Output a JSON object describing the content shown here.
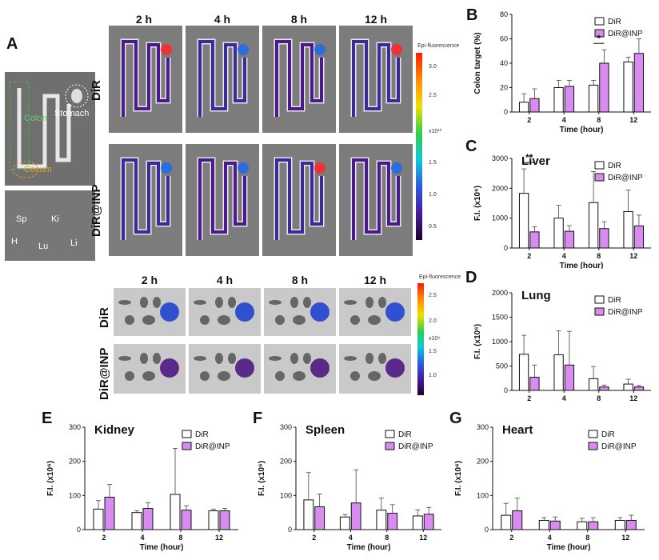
{
  "panels": {
    "A": "A",
    "B": "B",
    "C": "C",
    "D": "D",
    "E": "E",
    "F": "F",
    "G": "G"
  },
  "colon_imaging": {
    "times": [
      "2 h",
      "4 h",
      "8 h",
      "12 h"
    ],
    "rows": [
      "DiR",
      "DiR@INP"
    ],
    "colorbar_title": "Epi-fluorescence",
    "colorbar_ticks": [
      "3.0",
      "2.5",
      "2.0",
      "1.5",
      "1.0",
      "0.5"
    ],
    "colorbar_unit": "x10¹⁰"
  },
  "organ_imaging": {
    "times": [
      "2 h",
      "4 h",
      "8 h",
      "12 h"
    ],
    "rows": [
      "DiR",
      "DiR@INP"
    ],
    "colorbar_title": "Epi-fluorescence",
    "colorbar_ticks": [
      "2.5",
      "2.0",
      "1.5",
      "1.0"
    ],
    "colorbar_unit": "x10⁹"
  },
  "anatomy": {
    "colon": "Colon",
    "stomach": "Stomach",
    "cecum": "Cecum",
    "organs": [
      "Sp",
      "Ki",
      "H",
      "Lu",
      "Li"
    ]
  },
  "chart_data": [
    {
      "id": "B",
      "type": "bar",
      "categories": [
        "2",
        "4",
        "8",
        "12"
      ],
      "xlabel": "Time (hour)",
      "ylabel": "Colon target (%)",
      "ylim": [
        0,
        80
      ],
      "yticks": [
        0,
        20,
        40,
        60,
        80
      ],
      "legend": [
        "DiR",
        "DiR@INP"
      ],
      "legend_position": "top-right",
      "series": [
        {
          "name": "DiR",
          "values": [
            8,
            20,
            22,
            41
          ],
          "errors": [
            7,
            6,
            4,
            4
          ]
        },
        {
          "name": "DiR@INP",
          "values": [
            11,
            21,
            40,
            48
          ],
          "errors": [
            8,
            5,
            11,
            12
          ]
        }
      ],
      "annotations": [
        {
          "text": "*",
          "category": "8"
        }
      ]
    },
    {
      "id": "C",
      "type": "bar",
      "title": "Liver",
      "categories": [
        "2",
        "4",
        "8",
        "12"
      ],
      "xlabel": "Time (hour)",
      "ylabel": "F.I. (x10⁶)",
      "ylim": [
        0,
        3000
      ],
      "yticks": [
        0,
        1000,
        2000,
        3000
      ],
      "legend": [
        "DiR",
        "DiR@INP"
      ],
      "legend_position": "top-right",
      "series": [
        {
          "name": "DiR",
          "values": [
            1830,
            1000,
            1520,
            1220
          ],
          "errors": [
            820,
            430,
            1040,
            720
          ]
        },
        {
          "name": "DiR@INP",
          "values": [
            540,
            560,
            650,
            740
          ],
          "errors": [
            170,
            190,
            230,
            360
          ]
        }
      ],
      "annotations": [
        {
          "text": "**",
          "category": "2"
        }
      ]
    },
    {
      "id": "D",
      "type": "bar",
      "title": "Lung",
      "categories": [
        "2",
        "4",
        "8",
        "12"
      ],
      "xlabel": "Time (hour)",
      "ylabel": "F.I. (x10⁶)",
      "ylim": [
        0,
        2000
      ],
      "yticks": [
        0,
        500,
        1000,
        1500,
        2000
      ],
      "legend": [
        "DiR",
        "DiR@INP"
      ],
      "legend_position": "top-right",
      "series": [
        {
          "name": "DiR",
          "values": [
            740,
            730,
            240,
            130
          ],
          "errors": [
            390,
            490,
            250,
            100
          ]
        },
        {
          "name": "DiR@INP",
          "values": [
            270,
            520,
            70,
            70
          ],
          "errors": [
            250,
            690,
            40,
            30
          ]
        }
      ]
    },
    {
      "id": "E",
      "type": "bar",
      "title": "Kidney",
      "categories": [
        "2",
        "4",
        "8",
        "12"
      ],
      "xlabel": "Time (hour)",
      "ylabel": "F.I. (x10⁶)",
      "ylim": [
        0,
        300
      ],
      "yticks": [
        0,
        100,
        200,
        300
      ],
      "legend": [
        "DiR",
        "DiR@INP"
      ],
      "legend_position": "top-right",
      "series": [
        {
          "name": "DiR",
          "values": [
            60,
            50,
            103,
            55
          ],
          "errors": [
            25,
            5,
            135,
            5
          ]
        },
        {
          "name": "DiR@INP",
          "values": [
            95,
            62,
            57,
            55
          ],
          "errors": [
            37,
            17,
            13,
            7
          ]
        }
      ]
    },
    {
      "id": "F",
      "type": "bar",
      "title": "Spleen",
      "categories": [
        "2",
        "4",
        "8",
        "12"
      ],
      "xlabel": "Time (hour)",
      "ylabel": "F.I. (x10⁶)",
      "ylim": [
        0,
        300
      ],
      "yticks": [
        0,
        100,
        200,
        300
      ],
      "legend": [
        "DiR",
        "DiR@INP"
      ],
      "legend_position": "top-right",
      "series": [
        {
          "name": "DiR",
          "values": [
            87,
            37,
            57,
            40
          ],
          "errors": [
            80,
            7,
            35,
            18
          ]
        },
        {
          "name": "DiR@INP",
          "values": [
            67,
            78,
            48,
            45
          ],
          "errors": [
            37,
            97,
            25,
            20
          ]
        }
      ]
    },
    {
      "id": "G",
      "type": "bar",
      "title": "Heart",
      "categories": [
        "2",
        "4",
        "8",
        "12"
      ],
      "xlabel": "Time (hour)",
      "ylabel": "F.I. (x10⁶)",
      "ylim": [
        0,
        300
      ],
      "yticks": [
        0,
        100,
        200,
        300
      ],
      "legend": [
        "DiR",
        "DiR@INP"
      ],
      "legend_position": "top-right",
      "series": [
        {
          "name": "DiR",
          "values": [
            42,
            27,
            23,
            27
          ],
          "errors": [
            35,
            8,
            10,
            8
          ]
        },
        {
          "name": "DiR@INP",
          "values": [
            55,
            25,
            23,
            27
          ],
          "errors": [
            37,
            12,
            12,
            15
          ]
        }
      ]
    }
  ],
  "colors": {
    "dir_fill": "#ffffff",
    "inp_fill": "#d98cf0",
    "bar_stroke": "#111111"
  }
}
